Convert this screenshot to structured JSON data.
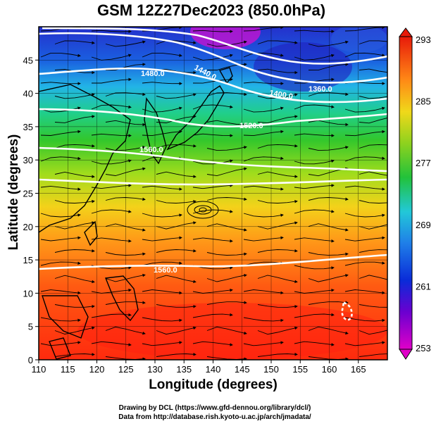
{
  "title": "GSM 12Z27Dec2023 (850.0hPa)",
  "xlabel": "Longitude (degrees)",
  "ylabel": "Latitude  (degrees)",
  "credits": [
    "Drawing by DCL (https://www.gfd-dennou.org/library/dcl/)",
    "Data from http://database.rish.kyoto-u.ac.jp/arch/jmadata/"
  ],
  "map": {
    "lon_range": [
      110,
      170
    ],
    "lat_range": [
      0,
      50
    ],
    "lon_ticks": [
      "110",
      "115",
      "120",
      "125",
      "130",
      "135",
      "140",
      "145",
      "150",
      "155",
      "160",
      "165"
    ],
    "lat_ticks": [
      "0",
      "5",
      "10",
      "15",
      "20",
      "25",
      "30",
      "35",
      "40",
      "45"
    ],
    "colorbar": {
      "min": 253,
      "max": 293,
      "labels": [
        "293",
        "285",
        "277",
        "269",
        "261",
        "253"
      ],
      "colors": [
        "#e8005a",
        "#d400d0",
        "#6a00d0",
        "#0a2bd8",
        "#1f77e0",
        "#22b8e8",
        "#2fd6a8",
        "#22c23a",
        "#7fcf1f",
        "#d2e21a",
        "#ffc21a",
        "#ff7a14",
        "#ff3a0a",
        "#e81a0a"
      ]
    },
    "contour_labels": [
      "1480.0",
      "1440.0",
      "1400.0",
      "1360.0",
      "1520.0",
      "1560.0",
      "1560.0"
    ]
  }
}
